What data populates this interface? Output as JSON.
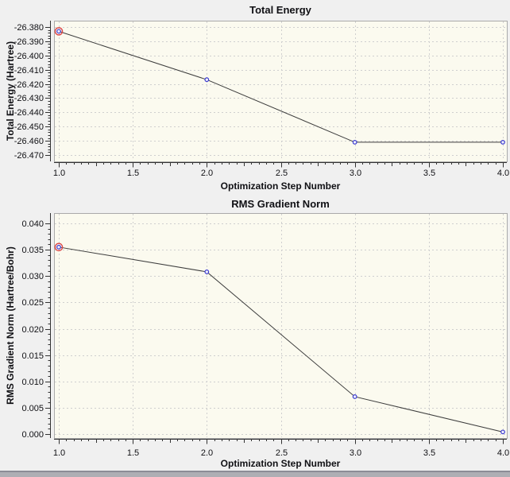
{
  "colors": {
    "page_background": "#f0f0f0",
    "plot_background": "#fbfaef",
    "grid": "#cfcfcf",
    "frame": "#aaaaaa",
    "axis": "#333333",
    "line": "#3c3c3c",
    "marker": "#3a3ad0",
    "marker_fill": "#eeeefc",
    "selected_marker_ring": "#dd4444",
    "text": "#101014",
    "splitter": "#8c8c96"
  },
  "chart_data": [
    {
      "type": "line",
      "title": "Total Energy",
      "xlabel": "Optimization Step Number",
      "ylabel": "Total Energy (Hartree)",
      "x": [
        1,
        2,
        3,
        4
      ],
      "y": [
        -26.383,
        -26.417,
        -26.461,
        -26.461
      ],
      "x_ticks": [
        "1.0",
        "1.5",
        "2.0",
        "2.5",
        "3.0",
        "3.5",
        "4.0"
      ],
      "y_ticks": [
        "-26.380",
        "-26.390",
        "-26.400",
        "-26.410",
        "-26.420",
        "-26.430",
        "-26.440",
        "-26.450",
        "-26.460",
        "-26.470"
      ],
      "xlim": [
        1.0,
        4.0
      ],
      "ylim": [
        -26.47,
        -26.38
      ],
      "grid": true,
      "legend": "none",
      "marker": "circle",
      "highlighted_point_index": 0
    },
    {
      "type": "line",
      "title": "RMS Gradient Norm",
      "xlabel": "Optimization Step Number",
      "ylabel": "RMS Gradient Norm (Hartree/Bohr)",
      "x": [
        1,
        2,
        3,
        4
      ],
      "y": [
        0.0355,
        0.0308,
        0.0071,
        0.0004
      ],
      "x_ticks": [
        "1.0",
        "1.5",
        "2.0",
        "2.5",
        "3.0",
        "3.5",
        "4.0"
      ],
      "y_ticks": [
        "0.040",
        "0.035",
        "0.030",
        "0.025",
        "0.020",
        "0.015",
        "0.010",
        "0.005",
        "0.000"
      ],
      "xlim": [
        1.0,
        4.0
      ],
      "ylim": [
        0.0,
        0.04
      ],
      "grid": true,
      "legend": "none",
      "marker": "circle",
      "highlighted_point_index": 0
    }
  ]
}
